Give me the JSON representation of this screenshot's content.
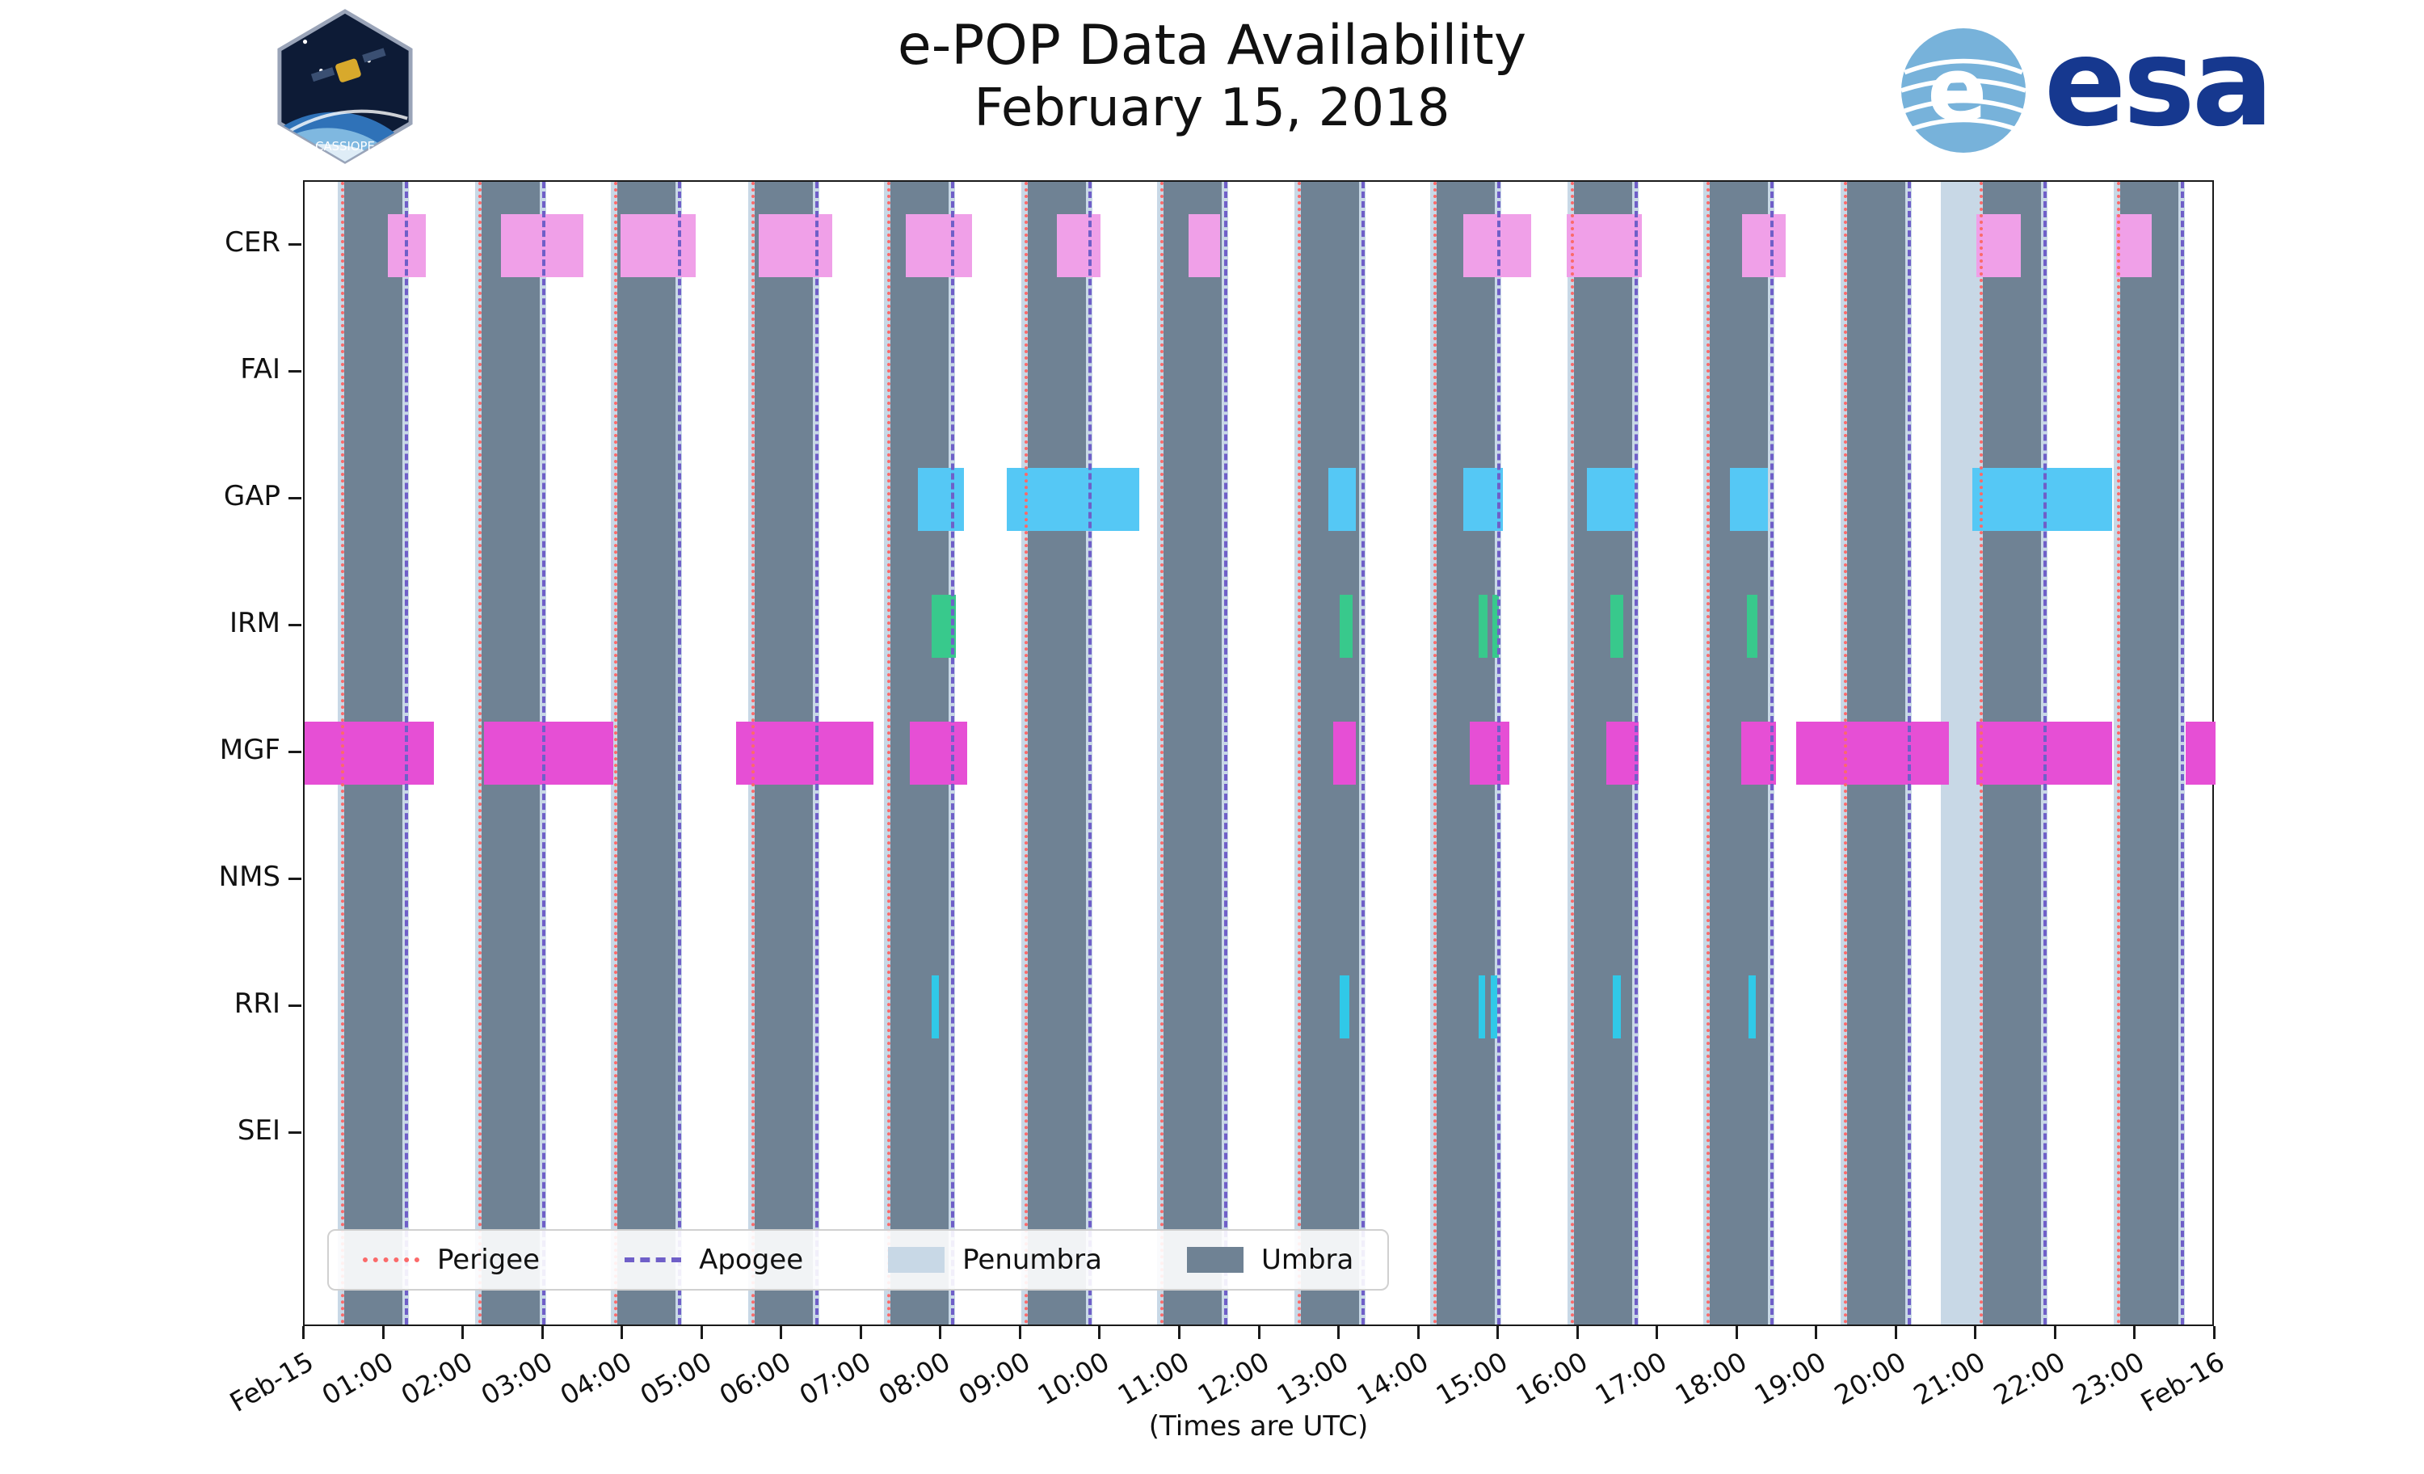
{
  "logos": {
    "cassiope_label": "CASSIOPE",
    "esa_label": "esa"
  },
  "chart_data": {
    "type": "timeline",
    "title": "e-POP Data Availability",
    "subtitle": "February 15, 2018",
    "xlabel": "(Times are UTC)",
    "x_range_hours": [
      0,
      24
    ],
    "x_ticks": [
      "Feb-15",
      "01:00",
      "02:00",
      "03:00",
      "04:00",
      "05:00",
      "06:00",
      "07:00",
      "08:00",
      "09:00",
      "10:00",
      "11:00",
      "12:00",
      "13:00",
      "14:00",
      "15:00",
      "16:00",
      "17:00",
      "18:00",
      "19:00",
      "20:00",
      "21:00",
      "22:00",
      "23:00",
      "Feb-16"
    ],
    "instruments": [
      "CER",
      "FAI",
      "GAP",
      "IRM",
      "MGF",
      "NMS",
      "RRI",
      "SEI"
    ],
    "colors": {
      "CER": "#f0a0e8",
      "FAI": "#f0a0e8",
      "GAP": "#55c8f5",
      "IRM": "#38c98c",
      "MGF": "#e64fd5",
      "NMS": "#55c8f5",
      "RRI": "#30c9e8",
      "SEI": "#38c98c",
      "umbra": "#6f8294",
      "penumbra": "#c8d8e6",
      "perigee": "#fb6a6a",
      "apogee": "#6f5fc8"
    },
    "umbra_intervals": [
      [
        0.5,
        1.23
      ],
      [
        2.22,
        2.95
      ],
      [
        3.93,
        4.66
      ],
      [
        5.65,
        6.38
      ],
      [
        7.36,
        8.09
      ],
      [
        9.08,
        9.81
      ],
      [
        10.79,
        11.52
      ],
      [
        12.51,
        13.24
      ],
      [
        14.22,
        14.95
      ],
      [
        15.94,
        16.67
      ],
      [
        17.65,
        18.38
      ],
      [
        19.37,
        20.1
      ],
      [
        21.08,
        21.81
      ],
      [
        22.8,
        23.53
      ]
    ],
    "penumbra_intervals": [
      [
        0.42,
        1.31
      ],
      [
        2.14,
        3.03
      ],
      [
        3.85,
        4.74
      ],
      [
        5.57,
        6.46
      ],
      [
        7.28,
        8.17
      ],
      [
        9.0,
        9.89
      ],
      [
        10.71,
        11.6
      ],
      [
        12.43,
        13.32
      ],
      [
        14.14,
        15.03
      ],
      [
        15.86,
        16.75
      ],
      [
        17.57,
        18.46
      ],
      [
        19.29,
        20.18
      ],
      [
        20.55,
        21.89
      ],
      [
        22.72,
        23.61
      ]
    ],
    "perigee_times": [
      0.48,
      2.2,
      3.91,
      5.63,
      7.34,
      9.06,
      10.77,
      12.49,
      14.2,
      15.92,
      17.63,
      19.35,
      21.06,
      22.78
    ],
    "apogee_times": [
      1.28,
      3.0,
      4.71,
      6.43,
      8.14,
      9.86,
      11.57,
      13.29,
      15.0,
      16.72,
      18.43,
      20.15,
      21.86,
      23.58
    ],
    "availability": {
      "CER": [
        [
          1.05,
          1.52
        ],
        [
          2.47,
          3.5
        ],
        [
          3.97,
          4.91
        ],
        [
          5.7,
          6.63
        ],
        [
          7.55,
          8.38
        ],
        [
          9.45,
          10.0
        ],
        [
          11.1,
          11.5
        ],
        [
          14.55,
          15.4
        ],
        [
          15.85,
          16.8
        ],
        [
          18.05,
          18.6
        ],
        [
          21.0,
          21.55
        ],
        [
          22.75,
          23.2
        ]
      ],
      "FAI": [],
      "GAP": [
        [
          7.7,
          8.28
        ],
        [
          8.82,
          10.48
        ],
        [
          12.86,
          13.2
        ],
        [
          14.55,
          15.05
        ],
        [
          16.1,
          16.7
        ],
        [
          17.9,
          18.38
        ],
        [
          20.95,
          22.7
        ]
      ],
      "IRM": [
        [
          7.87,
          8.18
        ],
        [
          13.0,
          13.16
        ],
        [
          14.74,
          14.86
        ],
        [
          14.92,
          15.0
        ],
        [
          16.4,
          16.56
        ],
        [
          18.11,
          18.25
        ]
      ],
      "MGF": [
        [
          0.0,
          1.62
        ],
        [
          2.25,
          3.88
        ],
        [
          5.42,
          7.14
        ],
        [
          7.6,
          8.32
        ],
        [
          12.92,
          13.2
        ],
        [
          14.63,
          15.13
        ],
        [
          16.35,
          16.75
        ],
        [
          18.04,
          18.48
        ],
        [
          18.73,
          20.65
        ],
        [
          21.0,
          22.7
        ],
        [
          23.62,
          24.0
        ]
      ],
      "NMS": [],
      "RRI": [
        [
          7.87,
          7.97
        ],
        [
          13.0,
          13.12
        ],
        [
          14.74,
          14.83
        ],
        [
          14.9,
          14.98
        ],
        [
          16.43,
          16.53
        ],
        [
          18.13,
          18.23
        ]
      ],
      "SEI": []
    },
    "legend": [
      {
        "label": "Perigee",
        "style": "dotted-line",
        "color": "#fb6a6a"
      },
      {
        "label": "Apogee",
        "style": "dashed-line",
        "color": "#6f5fc8"
      },
      {
        "label": "Penumbra",
        "style": "patch",
        "color": "#c8d8e6"
      },
      {
        "label": "Umbra",
        "style": "patch",
        "color": "#6f8294"
      }
    ]
  }
}
